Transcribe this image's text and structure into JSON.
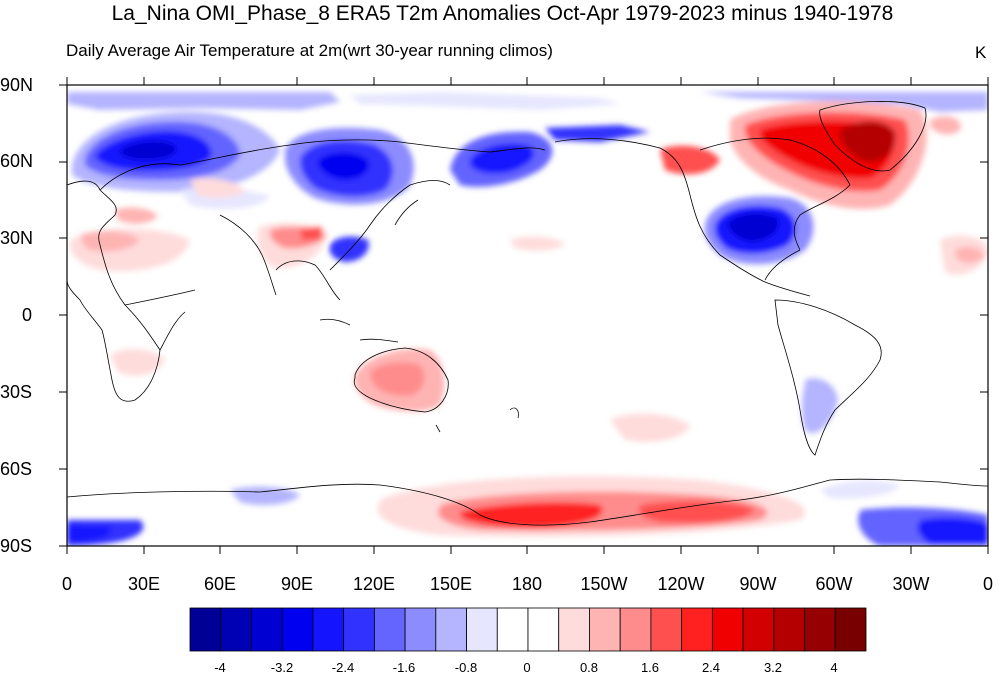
{
  "title": "La_Nina OMI_Phase_8 ERA5 T2m Anomalies Oct-Apr 1979-2023 minus 1940-1978",
  "subtitle_left": "Daily Average Air Temperature at 2m",
  "subtitle_mid": "(wrt 30-year running climos)",
  "units": "K",
  "lat_labels": [
    "90N",
    "60N",
    "30N",
    "0",
    "30S",
    "60S",
    "90S"
  ],
  "lon_labels": [
    "0",
    "30E",
    "60E",
    "90E",
    "120E",
    "150E",
    "180",
    "150W",
    "120W",
    "90W",
    "60W",
    "30W",
    "0"
  ],
  "colorbar": {
    "colors": [
      "#000096",
      "#0000b4",
      "#0000d2",
      "#0000f0",
      "#1414ff",
      "#3232ff",
      "#6464ff",
      "#8c8cff",
      "#b4b4ff",
      "#e6e6ff",
      "#ffffff",
      "#ffffff",
      "#ffdcdc",
      "#ffb4b4",
      "#ff8c8c",
      "#ff5050",
      "#ff2020",
      "#f00000",
      "#d20000",
      "#b40000",
      "#960000",
      "#780000"
    ],
    "tick_labels": [
      "-4",
      "-3.2",
      "-2.4",
      "-1.6",
      "-0.8",
      "0",
      "0.8",
      "1.6",
      "2.4",
      "3.2",
      "4"
    ]
  }
}
